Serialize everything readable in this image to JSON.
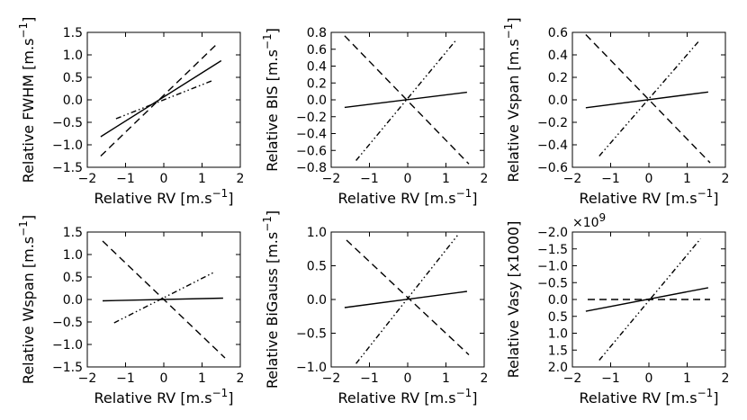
{
  "chart_data": [
    {
      "type": "line",
      "ylabel": "Relative FWHM [m.s",
      "ylabel_sup": "−1",
      "ylabel_tail": "]",
      "xlabel": "Relative RV [m.s",
      "xlabel_sup": "−1",
      "xlabel_tail": "]",
      "xlim": [
        -2,
        2
      ],
      "ylim": [
        -1.5,
        1.5
      ],
      "xticks": [
        -2,
        -1,
        0,
        1,
        2
      ],
      "xtick_labels": [
        "−2",
        "−1",
        "0",
        "1",
        "2"
      ],
      "yticks": [
        1.5,
        1.0,
        0.5,
        0.0,
        -0.5,
        -1.0,
        -1.5
      ],
      "ytick_labels": [
        "1.5",
        "1.0",
        "0.5",
        "0.0",
        "−0.5",
        "−1.0",
        "−1.5"
      ],
      "series": [
        {
          "name": "solid",
          "style": "solid",
          "x": [
            -1.65,
            1.5
          ],
          "y": [
            -0.82,
            0.87
          ]
        },
        {
          "name": "dashed",
          "style": "dashed",
          "x": [
            -1.65,
            1.4
          ],
          "y": [
            -1.25,
            1.25
          ]
        },
        {
          "name": "dashdotdot",
          "style": "dashdotdot",
          "x": [
            -1.25,
            1.25
          ],
          "y": [
            -0.42,
            0.42
          ]
        }
      ]
    },
    {
      "type": "line",
      "ylabel": "Relative BIS [m.s",
      "ylabel_sup": "−1",
      "ylabel_tail": "]",
      "xlabel": "Relative RV [m.s",
      "xlabel_sup": "−1",
      "xlabel_tail": "]",
      "xlim": [
        -2,
        2
      ],
      "ylim": [
        -0.8,
        0.8
      ],
      "xticks": [
        -2,
        -1,
        0,
        1,
        2
      ],
      "xtick_labels": [
        "−2",
        "−1",
        "0",
        "1",
        "2"
      ],
      "yticks": [
        0.8,
        0.6,
        0.4,
        0.2,
        0.0,
        -0.2,
        -0.4,
        -0.6,
        -0.8
      ],
      "ytick_labels": [
        "0.8",
        "0.6",
        "0.4",
        "0.2",
        "0.0",
        "−0.2",
        "−0.4",
        "−0.6",
        "−0.8"
      ],
      "series": [
        {
          "name": "solid",
          "style": "solid",
          "x": [
            -1.65,
            1.55
          ],
          "y": [
            -0.09,
            0.09
          ]
        },
        {
          "name": "dashed",
          "style": "dashed",
          "x": [
            -1.65,
            1.6
          ],
          "y": [
            0.76,
            -0.76
          ]
        },
        {
          "name": "dashdotdot",
          "style": "dashdotdot",
          "x": [
            -1.35,
            1.25
          ],
          "y": [
            -0.72,
            0.7
          ]
        }
      ]
    },
    {
      "type": "line",
      "ylabel": "Relative Vspan [m.s",
      "ylabel_sup": "−1",
      "ylabel_tail": "]",
      "xlabel": "Relative RV [m.s",
      "xlabel_sup": "−1",
      "xlabel_tail": "]",
      "xlim": [
        -2,
        2
      ],
      "ylim": [
        -0.6,
        0.6
      ],
      "xticks": [
        -2,
        -1,
        0,
        1,
        2
      ],
      "xtick_labels": [
        "−2",
        "−1",
        "0",
        "1",
        "2"
      ],
      "yticks": [
        0.6,
        0.4,
        0.2,
        0.0,
        -0.2,
        -0.4,
        -0.6
      ],
      "ytick_labels": [
        "0.6",
        "0.4",
        "0.2",
        "0.0",
        "−0.2",
        "−0.4",
        "−0.6"
      ],
      "series": [
        {
          "name": "solid",
          "style": "solid",
          "x": [
            -1.65,
            1.55
          ],
          "y": [
            -0.07,
            0.07
          ]
        },
        {
          "name": "dashed",
          "style": "dashed",
          "x": [
            -1.65,
            1.6
          ],
          "y": [
            0.58,
            -0.56
          ]
        },
        {
          "name": "dashdotdot",
          "style": "dashdotdot",
          "x": [
            -1.3,
            1.3
          ],
          "y": [
            -0.5,
            0.52
          ]
        }
      ]
    },
    {
      "type": "line",
      "ylabel": "Relative Wspan [m.s",
      "ylabel_sup": "−1",
      "ylabel_tail": "]",
      "xlabel": "Relative RV [m.s",
      "xlabel_sup": "−1",
      "xlabel_tail": "]",
      "xlim": [
        -2,
        2
      ],
      "ylim": [
        -1.5,
        1.5
      ],
      "xticks": [
        -2,
        -1,
        0,
        1,
        2
      ],
      "xtick_labels": [
        "−2",
        "−1",
        "0",
        "1",
        "2"
      ],
      "yticks": [
        1.5,
        1.0,
        0.5,
        0.0,
        -0.5,
        -1.0,
        -1.5
      ],
      "ytick_labels": [
        "1.5",
        "1.0",
        "0.5",
        "0.0",
        "−0.5",
        "−1.0",
        "−1.5"
      ],
      "series": [
        {
          "name": "solid",
          "style": "solid",
          "x": [
            -1.6,
            1.55
          ],
          "y": [
            -0.03,
            0.03
          ]
        },
        {
          "name": "dashed",
          "style": "dashed",
          "x": [
            -1.6,
            1.6
          ],
          "y": [
            1.3,
            -1.3
          ]
        },
        {
          "name": "dashdotdot",
          "style": "dashdotdot",
          "x": [
            -1.3,
            1.3
          ],
          "y": [
            -0.52,
            0.6
          ]
        }
      ]
    },
    {
      "type": "line",
      "ylabel": "Relative BiGauss [m.s",
      "ylabel_sup": "−1",
      "ylabel_tail": "]",
      "xlabel": "Relative RV [m.s",
      "xlabel_sup": "−1",
      "xlabel_tail": "]",
      "xlim": [
        -2,
        2
      ],
      "ylim": [
        -1.0,
        1.0
      ],
      "xticks": [
        -2,
        -1,
        0,
        1,
        2
      ],
      "xtick_labels": [
        "−2",
        "−1",
        "0",
        "1",
        "2"
      ],
      "yticks": [
        1.0,
        0.5,
        0.0,
        -0.5,
        -1.0
      ],
      "ytick_labels": [
        "1.0",
        "0.5",
        "0.0",
        "−0.5",
        "−1.0"
      ],
      "series": [
        {
          "name": "solid",
          "style": "solid",
          "x": [
            -1.65,
            1.55
          ],
          "y": [
            -0.12,
            0.12
          ]
        },
        {
          "name": "dashed",
          "style": "dashed",
          "x": [
            -1.6,
            1.6
          ],
          "y": [
            0.88,
            -0.82
          ]
        },
        {
          "name": "dashdotdot",
          "style": "dashdotdot",
          "x": [
            -1.35,
            1.3
          ],
          "y": [
            -0.95,
            0.95
          ]
        }
      ]
    },
    {
      "type": "line",
      "ylabel": "Relative Vasy [x1000]",
      "ylabel_sup": "",
      "ylabel_tail": "",
      "xlabel": "Relative RV [m.s",
      "xlabel_sup": "−1",
      "xlabel_tail": "]",
      "offset_label": "×10",
      "offset_exp": "9",
      "xlim": [
        -2,
        2
      ],
      "ylim": [
        -2.0,
        2.0
      ],
      "xticks": [
        -2,
        -1,
        0,
        1,
        2
      ],
      "xtick_labels": [
        "−2",
        "−1",
        "0",
        "1",
        "2"
      ],
      "yticks": [
        -2.0,
        -1.5,
        -1.0,
        -0.5,
        0.0,
        0.5,
        1.0,
        1.5,
        2.0
      ],
      "ytick_labels": [
        "−2.0",
        "−1.5",
        "−1.0",
        "−0.5",
        "0.0",
        "0.5",
        "1.0",
        "1.5",
        "2.0"
      ],
      "y_inverted": true,
      "series": [
        {
          "name": "solid",
          "style": "solid",
          "x": [
            -1.65,
            1.55
          ],
          "y": [
            0.35,
            -0.35
          ]
        },
        {
          "name": "dashed",
          "style": "dashed",
          "x": [
            -1.6,
            1.6
          ],
          "y": [
            0.0,
            0.0
          ]
        },
        {
          "name": "dashdotdot",
          "style": "dashdotdot",
          "x": [
            -1.3,
            1.35
          ],
          "y": [
            1.8,
            -1.8
          ]
        }
      ]
    }
  ]
}
